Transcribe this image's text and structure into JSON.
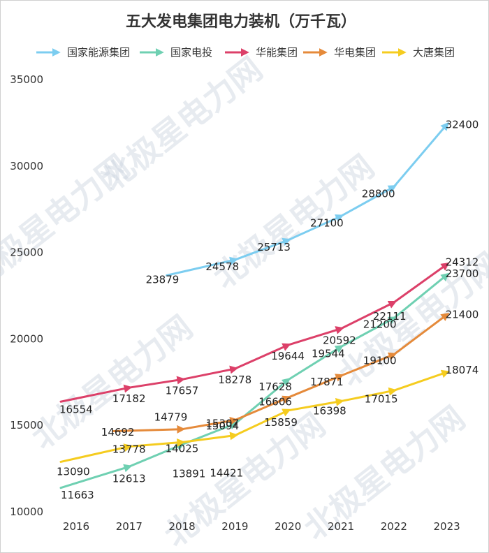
{
  "chart_data": {
    "type": "line",
    "title": "五大发电集团电力装机（万千瓦）",
    "xlabel": "",
    "ylabel": "",
    "categories": [
      "2016",
      "2017",
      "2018",
      "2019",
      "2020",
      "2021",
      "2022",
      "2023"
    ],
    "ylim": [
      10000,
      35000
    ],
    "yticks": [
      10000,
      15000,
      20000,
      25000,
      30000,
      35000
    ],
    "grid": false,
    "legend_position": "top",
    "watermark": "北极星电力网",
    "series": [
      {
        "name": "国家能源集团",
        "color": "#7ccdf0",
        "values": [
          null,
          null,
          23879,
          24578,
          25713,
          27100,
          28800,
          32400
        ]
      },
      {
        "name": "国家电投",
        "color": "#6fd0b2",
        "values": [
          11663,
          12613,
          13891,
          15094,
          17628,
          19544,
          21200,
          23700
        ]
      },
      {
        "name": "华能集团",
        "color": "#dc4069",
        "values": [
          16554,
          17182,
          17657,
          18278,
          19644,
          20592,
          22111,
          24312
        ]
      },
      {
        "name": "华电集团",
        "color": "#e58a3a",
        "values": [
          null,
          14692,
          14779,
          15307,
          16606,
          17871,
          19100,
          21400
        ]
      },
      {
        "name": "大唐集团",
        "color": "#f5cc1f",
        "values": [
          13090,
          13778,
          14025,
          14421,
          15859,
          16398,
          17015,
          18074
        ]
      }
    ]
  }
}
